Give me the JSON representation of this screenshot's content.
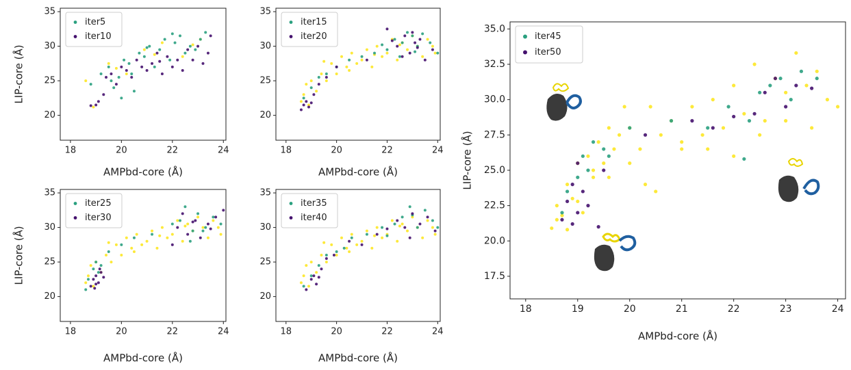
{
  "chart_data": [
    {
      "type": "scatter",
      "xlabel": "AMPbd-core (Å)",
      "ylabel": "LIP-core (Å)",
      "xlim": [
        17.6,
        24.1
      ],
      "ylim": [
        16.4,
        35.5
      ],
      "xticks": [
        18,
        20,
        22,
        24
      ],
      "yticks": [
        20,
        25,
        30,
        35
      ],
      "legend": "upper left",
      "series": [
        {
          "color": "#fde725",
          "x": [
            18.6,
            18.9,
            19.5,
            20.2,
            20.9,
            21.6,
            22.4,
            23.1,
            19.8,
            21.3,
            22.8
          ],
          "y": [
            25.0,
            21.2,
            27.5,
            26.0,
            29.5,
            30.5,
            28.5,
            31.0,
            26.8,
            28.8,
            30.2
          ]
        },
        {
          "name": "iter5",
          "color": "#2aa07f",
          "x": [
            18.8,
            19.2,
            19.5,
            19.7,
            19.9,
            20.1,
            20.3,
            20.5,
            20.7,
            20.9,
            21.1,
            21.3,
            21.5,
            21.7,
            21.9,
            22.1,
            22.3,
            22.5,
            22.7,
            22.9,
            23.1,
            23.3,
            20.0,
            21.0,
            22.0,
            19.6,
            20.4
          ],
          "y": [
            24.5,
            26.0,
            27.0,
            24.0,
            25.5,
            28.0,
            27.5,
            23.5,
            29.0,
            28.5,
            30.0,
            27.0,
            29.5,
            31.0,
            28.0,
            30.5,
            31.5,
            29.0,
            30.0,
            29.5,
            31.0,
            32.0,
            22.5,
            29.8,
            31.8,
            25.0,
            26.0
          ]
        },
        {
          "name": "iter10",
          "color": "#45116e",
          "x": [
            18.8,
            19.0,
            19.1,
            19.3,
            19.4,
            19.6,
            19.8,
            20.0,
            20.2,
            20.4,
            20.6,
            20.8,
            21.0,
            21.2,
            21.4,
            21.6,
            21.8,
            22.0,
            22.2,
            22.4,
            22.6,
            22.8,
            23.0,
            23.2,
            23.4,
            23.5,
            21.5
          ],
          "y": [
            21.4,
            21.5,
            22.0,
            23.0,
            25.5,
            26.0,
            24.5,
            27.0,
            26.5,
            25.5,
            28.0,
            27.0,
            26.5,
            27.5,
            29.0,
            26.0,
            28.5,
            27.0,
            28.0,
            26.5,
            29.5,
            28.0,
            30.0,
            27.5,
            29.0,
            31.5,
            27.8
          ]
        }
      ]
    },
    {
      "type": "scatter",
      "xlabel": "AMPbd-core (Å)",
      "xlim": [
        17.6,
        24.1
      ],
      "ylim": [
        16.4,
        35.5
      ],
      "xticks": [
        18,
        20,
        22,
        24
      ],
      "yticks": [
        20,
        25,
        30,
        35
      ],
      "legend": "upper left",
      "series": [
        {
          "color": "#fde725",
          "x": [
            18.6,
            18.8,
            18.9,
            19.0,
            19.2,
            19.4,
            19.6,
            19.8,
            20.0,
            20.2,
            20.4,
            20.6,
            20.8,
            21.0,
            21.2,
            21.4,
            21.6,
            21.8,
            22.0,
            22.2,
            22.4,
            22.6,
            22.8,
            23.0,
            23.2,
            23.4,
            23.6,
            23.8,
            20.5,
            21.5,
            22.5,
            19.5,
            18.7,
            23.9
          ],
          "y": [
            22.0,
            24.5,
            21.5,
            25.0,
            23.5,
            26.0,
            25.0,
            27.5,
            26.0,
            28.5,
            27.0,
            29.0,
            27.5,
            28.0,
            29.5,
            27.0,
            30.0,
            28.5,
            29.0,
            31.0,
            28.0,
            30.5,
            29.5,
            31.5,
            30.0,
            28.5,
            31.0,
            30.0,
            26.5,
            28.8,
            30.2,
            27.8,
            23.0,
            29.0
          ]
        },
        {
          "name": "iter15",
          "color": "#2aa07f",
          "x": [
            18.7,
            19.0,
            19.3,
            19.6,
            20.0,
            20.5,
            21.0,
            21.5,
            22.0,
            22.3,
            22.6,
            22.8,
            23.0,
            23.2,
            23.4,
            23.7,
            24.0,
            22.5,
            23.1,
            21.8
          ],
          "y": [
            22.5,
            24.0,
            25.5,
            26.0,
            27.0,
            28.0,
            28.5,
            29.0,
            29.5,
            31.0,
            30.5,
            32.0,
            31.5,
            30.0,
            31.8,
            30.5,
            29.0,
            28.5,
            29.2,
            30.2
          ]
        },
        {
          "name": "iter20",
          "color": "#45116e",
          "x": [
            18.6,
            18.7,
            18.8,
            18.9,
            19.0,
            19.1,
            19.3,
            19.6,
            20.0,
            21.2,
            22.0,
            22.4,
            22.6,
            22.7,
            22.9,
            23.0,
            23.1,
            23.3,
            23.5,
            23.8,
            22.2,
            23.2
          ],
          "y": [
            20.8,
            21.5,
            22.0,
            21.2,
            21.8,
            23.0,
            24.5,
            25.5,
            27.0,
            28.0,
            32.5,
            30.0,
            28.5,
            31.5,
            29.0,
            32.0,
            30.5,
            31.0,
            28.0,
            29.5,
            30.8,
            29.8
          ]
        }
      ]
    },
    {
      "type": "scatter",
      "xlabel": "AMPbd-core (Å)",
      "ylabel": "LIP-core (Å)",
      "xlim": [
        17.6,
        24.1
      ],
      "ylim": [
        16.4,
        35.5
      ],
      "xticks": [
        18,
        20,
        22,
        24
      ],
      "yticks": [
        20,
        25,
        30,
        35
      ],
      "legend": "upper left",
      "series": [
        {
          "color": "#fde725",
          "x": [
            18.6,
            18.8,
            18.9,
            19.0,
            19.2,
            19.4,
            19.6,
            19.8,
            20.0,
            20.2,
            20.4,
            20.6,
            20.8,
            21.0,
            21.2,
            21.4,
            21.6,
            21.8,
            22.0,
            22.2,
            22.4,
            22.6,
            22.8,
            23.0,
            23.2,
            23.4,
            23.6,
            23.8,
            20.5,
            21.5,
            22.5,
            19.5,
            18.7,
            23.9
          ],
          "y": [
            22.0,
            24.5,
            21.5,
            25.0,
            23.5,
            26.0,
            25.0,
            27.5,
            26.0,
            28.5,
            27.0,
            29.0,
            27.5,
            28.0,
            29.5,
            27.0,
            30.0,
            28.5,
            29.0,
            31.0,
            28.0,
            30.5,
            29.5,
            31.5,
            30.0,
            28.5,
            31.0,
            30.0,
            26.5,
            28.8,
            30.2,
            27.8,
            23.0,
            29.0
          ]
        },
        {
          "name": "iter25",
          "color": "#2aa07f",
          "x": [
            18.6,
            18.7,
            18.9,
            19.0,
            19.2,
            19.5,
            20.0,
            20.5,
            21.2,
            22.0,
            22.3,
            22.5,
            22.8,
            23.0,
            23.3,
            23.6,
            23.9,
            19.1,
            22.7,
            23.2
          ],
          "y": [
            21.0,
            22.5,
            24.0,
            25.0,
            24.5,
            26.5,
            27.5,
            28.5,
            29.0,
            30.5,
            31.0,
            33.0,
            29.5,
            32.0,
            30.0,
            31.5,
            30.5,
            23.5,
            28.0,
            29.5
          ]
        },
        {
          "name": "iter30",
          "color": "#45116e",
          "x": [
            18.8,
            18.9,
            19.0,
            19.0,
            19.1,
            19.2,
            19.3,
            18.95,
            19.15,
            22.2,
            22.4,
            22.6,
            22.9,
            23.1,
            23.4,
            23.7,
            24.0,
            22.0,
            22.8,
            23.5
          ],
          "y": [
            21.5,
            22.5,
            21.8,
            23.0,
            22.0,
            23.5,
            22.8,
            21.2,
            24.0,
            30.0,
            32.0,
            29.0,
            31.0,
            28.5,
            30.5,
            31.5,
            32.5,
            27.5,
            30.8,
            29.8
          ]
        }
      ]
    },
    {
      "type": "scatter",
      "xlabel": "AMPbd-core (Å)",
      "xlim": [
        17.6,
        24.1
      ],
      "ylim": [
        16.4,
        35.5
      ],
      "xticks": [
        18,
        20,
        22,
        24
      ],
      "yticks": [
        20,
        25,
        30,
        35
      ],
      "legend": "upper left",
      "series": [
        {
          "color": "#fde725",
          "x": [
            18.6,
            18.8,
            18.9,
            19.0,
            19.2,
            19.4,
            19.6,
            19.8,
            20.0,
            20.2,
            20.4,
            20.6,
            20.8,
            21.0,
            21.2,
            21.4,
            21.6,
            21.8,
            22.0,
            22.2,
            22.4,
            22.6,
            22.8,
            23.0,
            23.2,
            23.4,
            23.6,
            23.8,
            20.5,
            21.5,
            22.5,
            19.5,
            18.7,
            23.9
          ],
          "y": [
            22.0,
            24.5,
            21.5,
            25.0,
            23.5,
            26.0,
            25.0,
            27.5,
            26.0,
            28.5,
            27.0,
            29.0,
            27.5,
            28.0,
            29.5,
            27.0,
            30.0,
            28.5,
            29.0,
            31.0,
            28.0,
            30.5,
            29.5,
            31.5,
            30.0,
            28.5,
            31.0,
            30.0,
            26.5,
            28.8,
            30.2,
            27.8,
            23.0,
            29.0
          ]
        },
        {
          "name": "iter35",
          "color": "#2aa07f",
          "x": [
            18.7,
            19.0,
            19.3,
            19.6,
            20.0,
            20.6,
            21.2,
            21.8,
            22.3,
            22.6,
            22.9,
            23.2,
            23.5,
            23.8,
            24.0,
            20.3,
            22.0,
            23.0
          ],
          "y": [
            21.5,
            23.0,
            24.5,
            26.0,
            26.5,
            28.5,
            29.0,
            30.0,
            30.5,
            31.5,
            33.0,
            30.0,
            32.5,
            31.0,
            30.0,
            27.0,
            28.8,
            31.8
          ]
        },
        {
          "name": "iter40",
          "color": "#45116e",
          "x": [
            18.8,
            19.0,
            19.1,
            19.2,
            19.4,
            19.6,
            19.9,
            20.5,
            21.0,
            21.6,
            22.0,
            22.4,
            22.7,
            23.0,
            23.3,
            23.6,
            23.9,
            19.3,
            22.9
          ],
          "y": [
            21.0,
            22.5,
            23.0,
            21.8,
            24.0,
            25.5,
            26.0,
            28.0,
            27.5,
            29.0,
            29.8,
            31.0,
            30.0,
            32.0,
            30.5,
            31.5,
            29.5,
            22.8,
            28.5
          ]
        }
      ]
    },
    {
      "type": "scatter",
      "xlabel": "AMPbd-core (Å)",
      "ylabel": "LIP-core (Å)",
      "xlim": [
        17.7,
        24.15
      ],
      "ylim": [
        15.9,
        35.5
      ],
      "xticks": [
        18,
        19,
        20,
        21,
        22,
        23,
        24
      ],
      "yticks": [
        {
          "value": 17.5,
          "label": "17.5"
        },
        {
          "value": 20,
          "label": "20.0"
        },
        {
          "value": 22.5,
          "label": "22.5"
        },
        {
          "value": 25,
          "label": "25.0"
        },
        {
          "value": 27.5,
          "label": "27.5"
        },
        {
          "value": 30,
          "label": "30.0"
        },
        {
          "value": 32.5,
          "label": "32.5"
        },
        {
          "value": 35,
          "label": "35.0"
        }
      ],
      "legend": "upper left",
      "series": [
        {
          "color": "#fde725",
          "x": [
            18.5,
            18.6,
            18.7,
            18.8,
            18.9,
            19.0,
            19.1,
            19.2,
            19.3,
            19.4,
            19.5,
            19.6,
            19.7,
            19.8,
            19.9,
            20.0,
            20.2,
            20.4,
            20.6,
            20.8,
            21.0,
            21.2,
            21.4,
            21.6,
            21.8,
            22.0,
            22.2,
            22.4,
            22.6,
            22.8,
            23.0,
            23.2,
            23.4,
            23.6,
            23.8,
            24.0,
            18.6,
            18.8,
            19.0,
            19.3,
            20.0,
            20.5,
            21.5,
            22.5,
            23.0,
            23.5,
            22.0,
            21.0,
            20.3,
            19.6
          ],
          "y": [
            20.9,
            22.5,
            21.8,
            24.0,
            23.0,
            25.5,
            22.0,
            26.0,
            24.5,
            27.0,
            25.5,
            28.0,
            26.5,
            27.5,
            29.5,
            28.0,
            26.5,
            29.5,
            27.5,
            28.5,
            26.5,
            29.5,
            27.5,
            30.0,
            28.0,
            31.0,
            29.0,
            32.5,
            28.5,
            31.5,
            30.5,
            33.3,
            31.0,
            32.0,
            30.0,
            29.5,
            21.5,
            20.8,
            22.8,
            25.0,
            25.5,
            23.5,
            26.5,
            27.5,
            28.5,
            28.0,
            26.0,
            27.0,
            24.0,
            24.5
          ]
        },
        {
          "name": "iter45",
          "color": "#2aa07f",
          "x": [
            18.7,
            18.8,
            19.0,
            19.1,
            19.2,
            19.3,
            19.5,
            20.0,
            20.8,
            21.5,
            21.9,
            22.2,
            22.5,
            22.7,
            22.9,
            23.1,
            23.3,
            23.6,
            22.3,
            19.6
          ],
          "y": [
            22.0,
            23.5,
            24.5,
            26.0,
            25.0,
            27.0,
            26.5,
            28.0,
            28.5,
            28.0,
            29.5,
            25.8,
            30.5,
            31.0,
            31.5,
            30.0,
            32.0,
            31.5,
            28.5,
            26.0
          ]
        },
        {
          "name": "iter50",
          "color": "#45116e",
          "x": [
            18.7,
            18.8,
            18.9,
            19.0,
            19.1,
            19.2,
            19.4,
            19.5,
            20.3,
            21.2,
            21.6,
            22.0,
            22.4,
            22.6,
            22.8,
            23.0,
            23.2,
            23.5,
            18.9,
            19.0
          ],
          "y": [
            21.5,
            22.8,
            21.2,
            22.0,
            23.5,
            22.5,
            21.0,
            25.0,
            27.5,
            28.5,
            28.0,
            28.8,
            29.0,
            30.5,
            31.5,
            29.5,
            31.0,
            30.8,
            24.0,
            25.5
          ]
        }
      ]
    }
  ]
}
